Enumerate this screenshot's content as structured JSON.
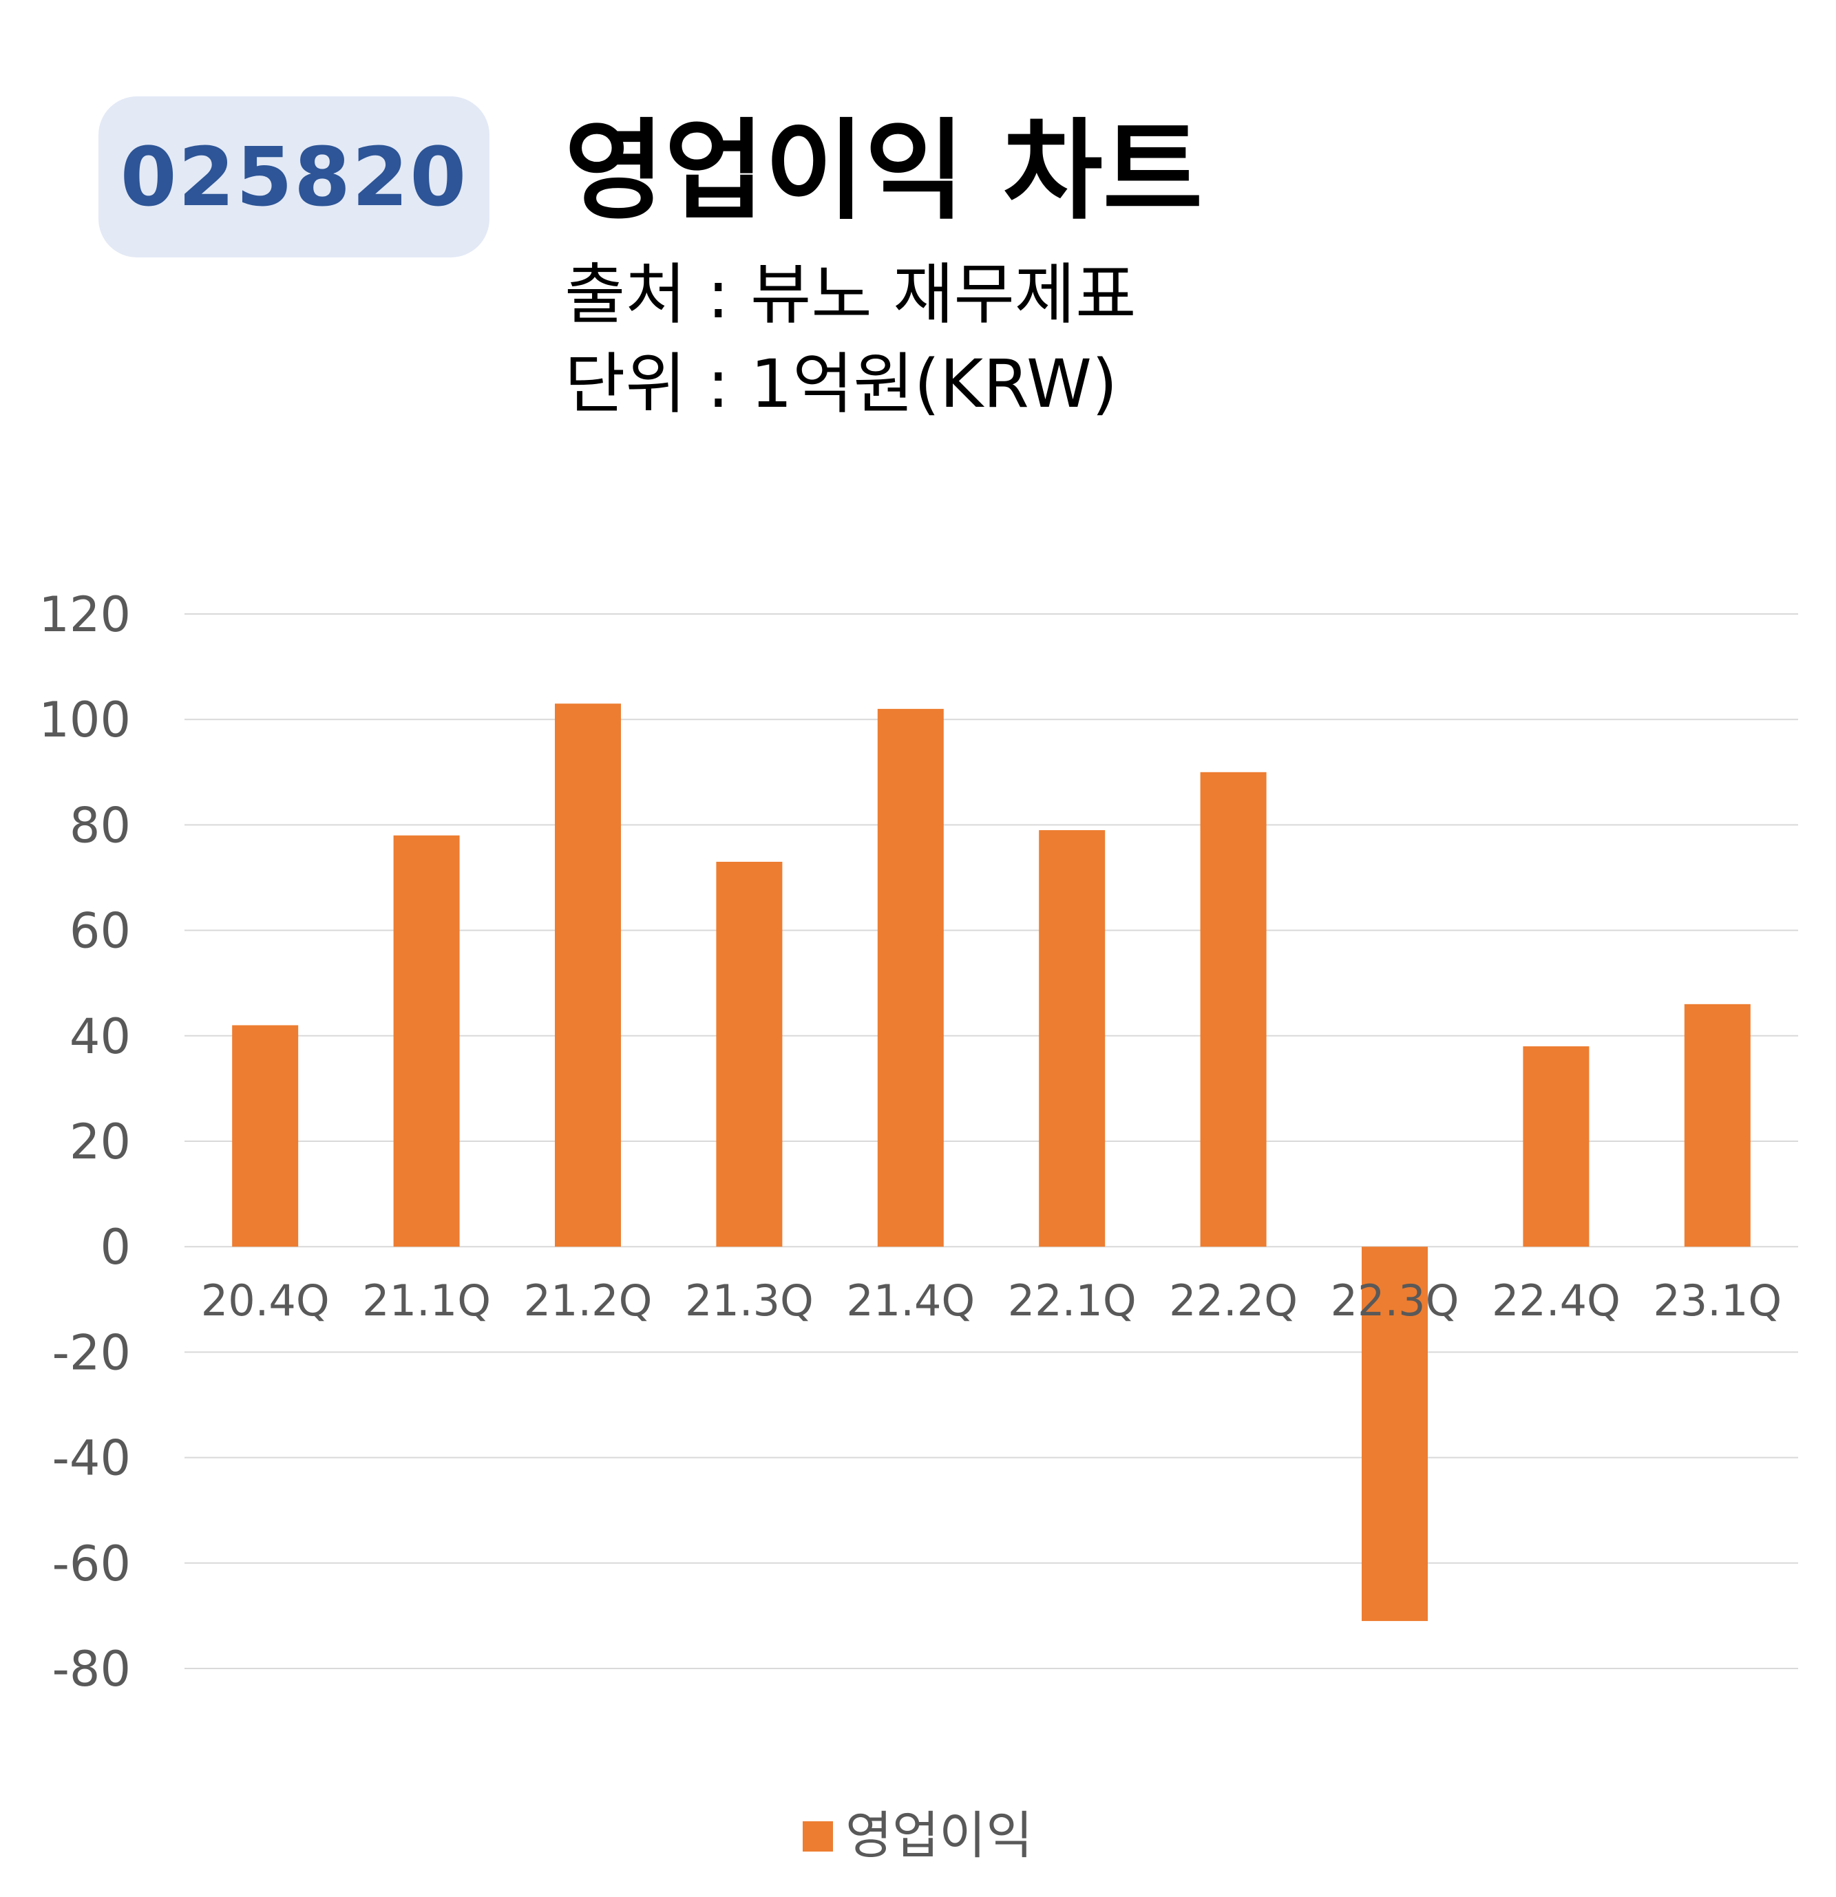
{
  "header": {
    "ticker": "025820",
    "title": "영업이익 차트",
    "source": "출처 : 뷰노 재무제표",
    "unit": "단위 : 1억원(KRW)"
  },
  "colors": {
    "bar": "#ed7d31",
    "grid": "#d9d9d9",
    "badge_bg": "#e3e9f5",
    "badge_text": "#2d5597"
  },
  "chart_data": {
    "type": "bar",
    "categories": [
      "20.4Q",
      "21.1Q",
      "21.2Q",
      "21.3Q",
      "21.4Q",
      "22.1Q",
      "22.2Q",
      "22.3Q",
      "22.4Q",
      "23.1Q"
    ],
    "series": [
      {
        "name": "영업이익",
        "values": [
          42,
          78,
          103,
          73,
          102,
          79,
          90,
          -71,
          38,
          46
        ]
      }
    ],
    "ylim": [
      -80,
      120
    ],
    "yticks": [
      120,
      100,
      80,
      60,
      40,
      20,
      0,
      -20,
      -40,
      -60,
      -80
    ],
    "title": "",
    "xlabel": "",
    "ylabel": "",
    "grid": true,
    "legend": "bottom-center"
  }
}
